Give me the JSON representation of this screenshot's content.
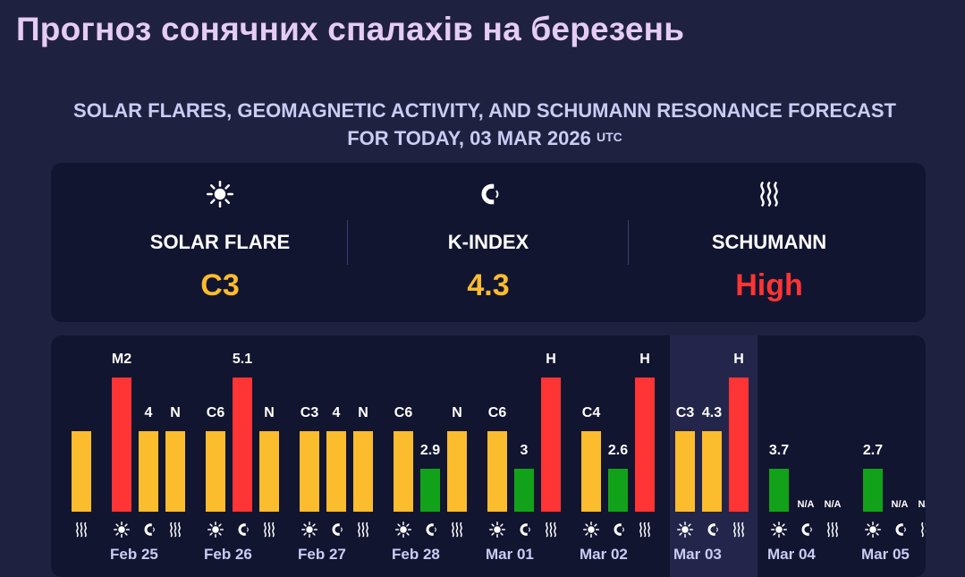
{
  "page": {
    "title": "Прогноз сонячних спалахів на березень",
    "subtitle": "Solar flares, geomagnetic activity, and Schumann resonance forecast for today, 03 Mar 2026",
    "subtitle_sup": "UTC"
  },
  "summary": [
    {
      "icon": "sun-icon",
      "label": "SOLAR FLARE",
      "value": "C3",
      "color": "#fbbc2d"
    },
    {
      "icon": "magnet-icon",
      "label": "K-INDEX",
      "value": "4.3",
      "color": "#fbbc2d"
    },
    {
      "icon": "wave-icon",
      "label": "SCHUMANN",
      "value": "High",
      "color": "#ff3434"
    }
  ],
  "colors": {
    "yellow": "#fbbc2d",
    "red": "#ff3434",
    "green": "#12a21a"
  },
  "levels": {
    "low": 0.32,
    "mid": 0.6,
    "high": 1.0
  },
  "days": [
    {
      "date": "",
      "partial": true,
      "bars": [
        null,
        null,
        {
          "label": "",
          "level": "mid",
          "color": "yellow"
        }
      ]
    },
    {
      "date": "Feb 25",
      "bars": [
        {
          "label": "M2",
          "level": "high",
          "color": "red"
        },
        {
          "label": "4",
          "level": "mid",
          "color": "yellow"
        },
        {
          "label": "N",
          "level": "mid",
          "color": "yellow"
        }
      ]
    },
    {
      "date": "Feb 26",
      "bars": [
        {
          "label": "C6",
          "level": "mid",
          "color": "yellow"
        },
        {
          "label": "5.1",
          "level": "high",
          "color": "red"
        },
        {
          "label": "N",
          "level": "mid",
          "color": "yellow"
        }
      ]
    },
    {
      "date": "Feb 27",
      "bars": [
        {
          "label": "C3",
          "level": "mid",
          "color": "yellow"
        },
        {
          "label": "4",
          "level": "mid",
          "color": "yellow"
        },
        {
          "label": "N",
          "level": "mid",
          "color": "yellow"
        }
      ]
    },
    {
      "date": "Feb 28",
      "bars": [
        {
          "label": "C6",
          "level": "mid",
          "color": "yellow"
        },
        {
          "label": "2.9",
          "level": "low",
          "color": "green"
        },
        {
          "label": "N",
          "level": "mid",
          "color": "yellow"
        }
      ]
    },
    {
      "date": "Mar 01",
      "bars": [
        {
          "label": "C6",
          "level": "mid",
          "color": "yellow"
        },
        {
          "label": "3",
          "level": "low",
          "color": "green"
        },
        {
          "label": "H",
          "level": "high",
          "color": "red"
        }
      ]
    },
    {
      "date": "Mar 02",
      "bars": [
        {
          "label": "C4",
          "level": "mid",
          "color": "yellow"
        },
        {
          "label": "2.6",
          "level": "low",
          "color": "green"
        },
        {
          "label": "H",
          "level": "high",
          "color": "red"
        }
      ]
    },
    {
      "date": "Mar 03",
      "today": true,
      "bars": [
        {
          "label": "C3",
          "level": "mid",
          "color": "yellow"
        },
        {
          "label": "4.3",
          "level": "mid",
          "color": "yellow"
        },
        {
          "label": "H",
          "level": "high",
          "color": "red"
        }
      ]
    },
    {
      "date": "Mar 04",
      "bars": [
        {
          "label": "3.7",
          "level": "low",
          "color": "green"
        },
        {
          "label": "N/A",
          "level": "none",
          "color": "none"
        },
        {
          "label": "N/A",
          "level": "none",
          "color": "none"
        }
      ]
    },
    {
      "date": "Mar 05",
      "bars": [
        {
          "label": "2.7",
          "level": "low",
          "color": "green"
        },
        {
          "label": "N/A",
          "level": "none",
          "color": "none"
        },
        {
          "label": "N/A",
          "level": "none",
          "color": "none"
        }
      ]
    }
  ],
  "day_icons": [
    "sun-icon",
    "magnet-icon",
    "wave-icon"
  ]
}
